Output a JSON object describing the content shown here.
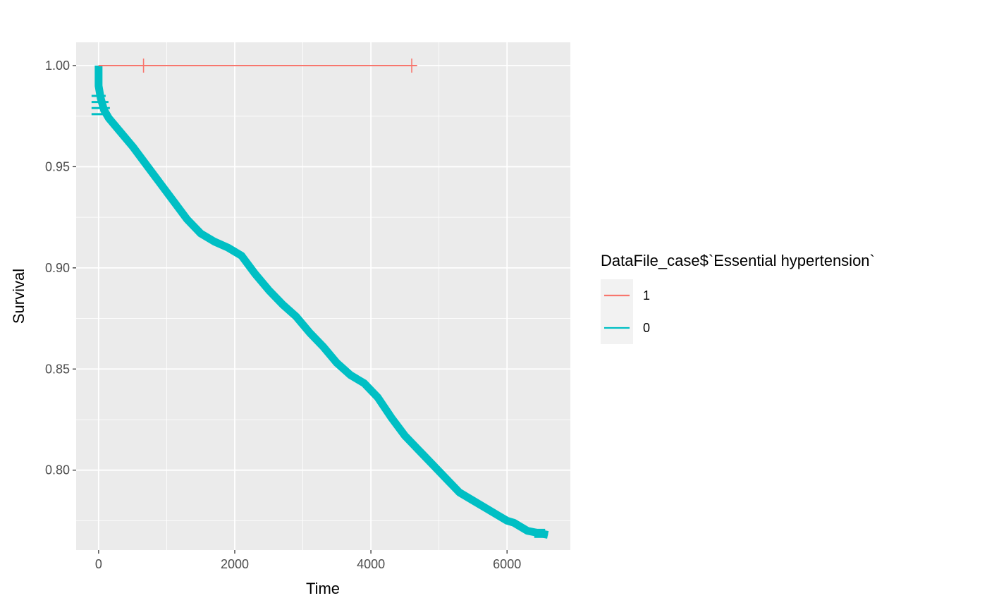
{
  "chart_data": {
    "type": "line",
    "title": "",
    "xlabel": "Time",
    "ylabel": "Survival",
    "xlim": [
      -330,
      6930
    ],
    "ylim": [
      0.7605,
      1.0115
    ],
    "x_ticks": [
      0,
      2000,
      4000,
      6000
    ],
    "x_tick_labels": [
      "0",
      "2000",
      "4000",
      "6000"
    ],
    "y_ticks": [
      0.8,
      0.85,
      0.9,
      0.95,
      1.0
    ],
    "y_tick_labels": [
      "0.80",
      "0.85",
      "0.90",
      "0.95",
      "1.00"
    ],
    "grid": true,
    "legend_title": "DataFile_case$`Essential hypertension`",
    "legend_position": "right",
    "series": [
      {
        "name": "1",
        "color": "#F8766D",
        "x": [
          0,
          4680
        ],
        "y": [
          1.0,
          1.0
        ],
        "censor_x": [
          660,
          4600
        ],
        "censor_y": [
          1.0,
          1.0
        ]
      },
      {
        "name": "0",
        "color": "#00BFC4",
        "x": [
          0,
          0,
          30,
          80,
          150,
          300,
          500,
          700,
          900,
          1100,
          1300,
          1500,
          1700,
          1900,
          2100,
          2300,
          2500,
          2700,
          2900,
          3100,
          3300,
          3500,
          3700,
          3900,
          4100,
          4300,
          4500,
          4700,
          4900,
          5100,
          5300,
          5500,
          5700,
          5900,
          6000,
          6100,
          6200,
          6300,
          6450,
          6600
        ],
        "y": [
          1.0,
          0.99,
          0.984,
          0.978,
          0.974,
          0.968,
          0.96,
          0.951,
          0.942,
          0.933,
          0.924,
          0.917,
          0.913,
          0.91,
          0.906,
          0.897,
          0.889,
          0.882,
          0.876,
          0.868,
          0.861,
          0.853,
          0.847,
          0.843,
          0.836,
          0.826,
          0.817,
          0.81,
          0.803,
          0.796,
          0.789,
          0.785,
          0.781,
          0.777,
          0.775,
          0.774,
          0.772,
          0.77,
          0.769,
          0.768
        ]
      }
    ]
  }
}
